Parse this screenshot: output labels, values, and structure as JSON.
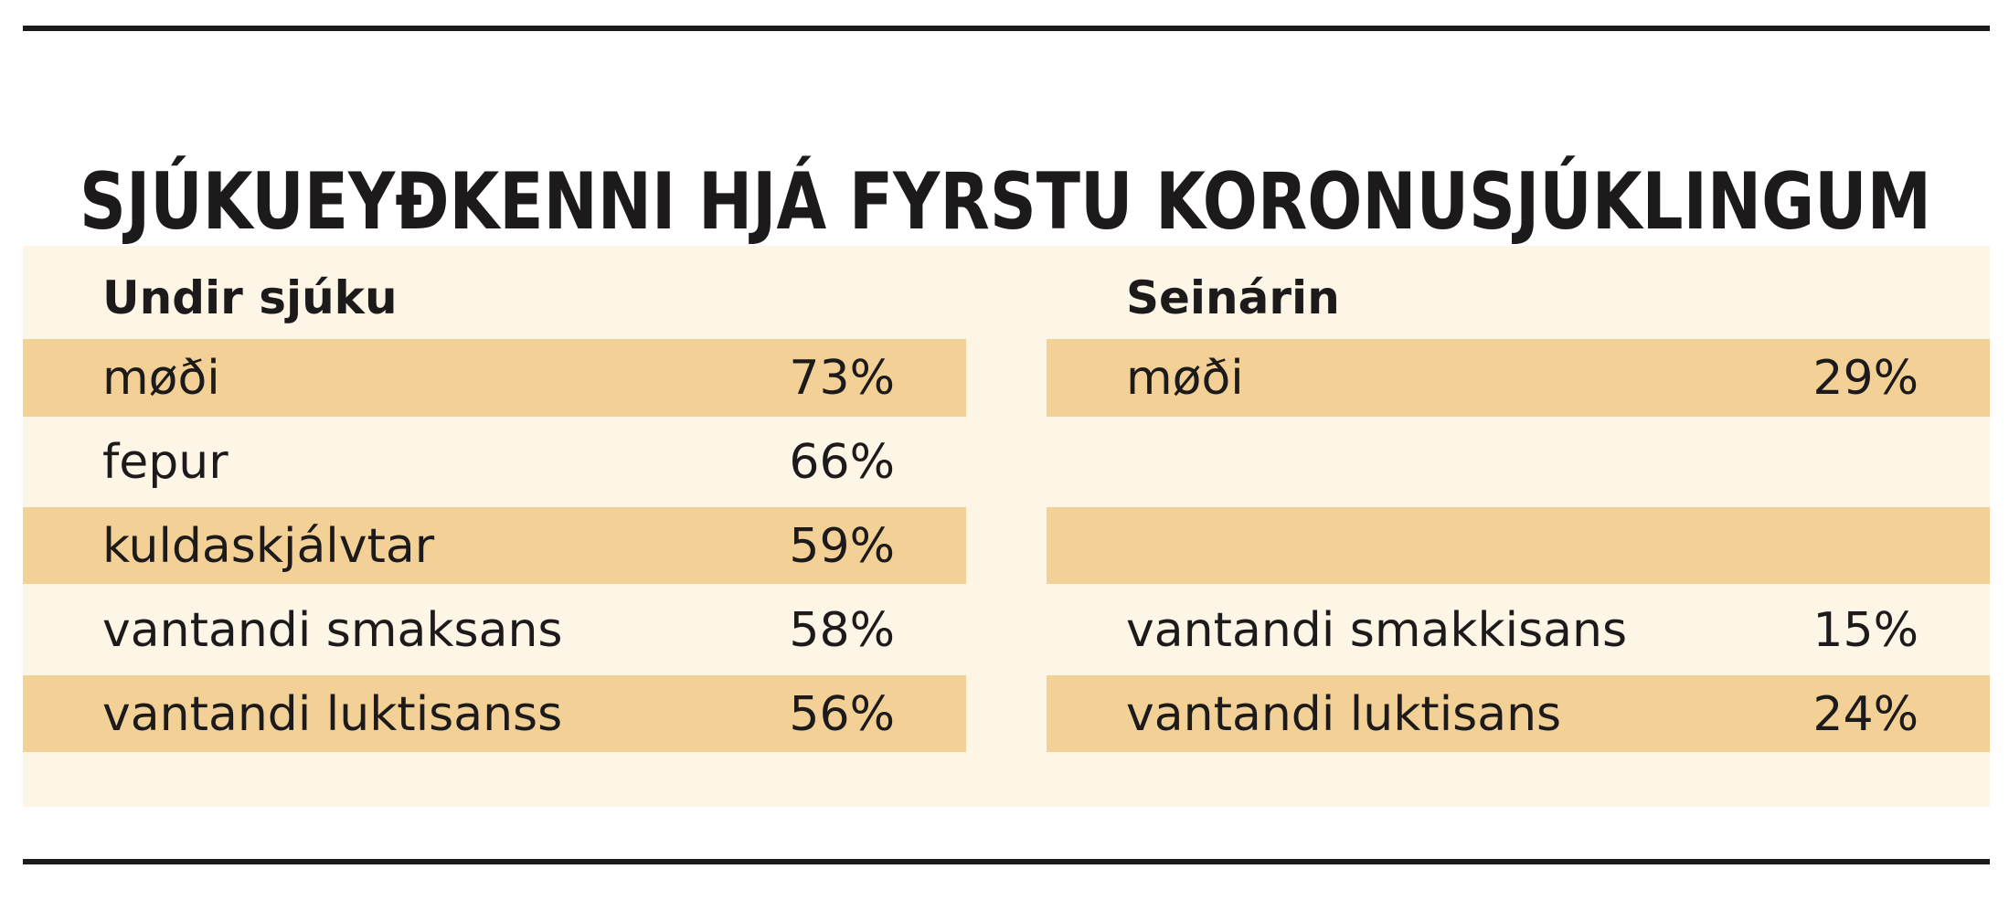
{
  "title": "SJÚKUEYÐKENNI HJÁ FYRSTU KORONUSJÚKLINGUM",
  "left": {
    "header": "Undir sjúku",
    "rows": [
      {
        "label": "møði",
        "value": "73%"
      },
      {
        "label": "fepur",
        "value": "66%"
      },
      {
        "label": "kuldaskjálvtar",
        "value": "59%"
      },
      {
        "label": "vantandi smaksans",
        "value": "58%"
      },
      {
        "label": "vantandi luktisanss",
        "value": "56%"
      }
    ]
  },
  "right": {
    "header": "Seinárin",
    "rows": [
      {
        "label": "møði",
        "value": "29%"
      },
      null,
      null,
      {
        "label": "vantandi smakkisans",
        "value": "15%"
      },
      {
        "label": "vantandi luktisans",
        "value": "24%"
      }
    ]
  }
}
